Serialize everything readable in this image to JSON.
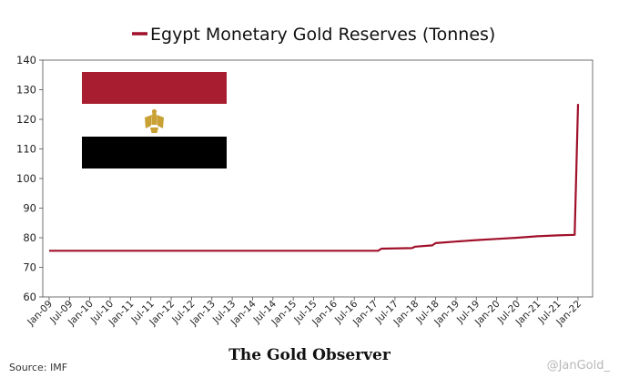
{
  "chart_data": {
    "type": "line",
    "title": "Egypt Monetary Gold Reserves (Tonnes)",
    "xlabel": "",
    "ylabel": "",
    "ylim": [
      60,
      140
    ],
    "yticks": [
      60,
      70,
      80,
      90,
      100,
      110,
      120,
      130,
      140
    ],
    "xticks": [
      "Jan-09",
      "Jul-09",
      "Jan-10",
      "Jul-10",
      "Jan-11",
      "Jul-11",
      "Jan-12",
      "Jul-12",
      "Jan-13",
      "Jul-13",
      "Jan-14",
      "Jul-14",
      "Jan-15",
      "Jul-15",
      "Jan-16",
      "Jul-16",
      "Jan-17",
      "Jul-17",
      "Jan-18",
      "Jul-18",
      "Jan-19",
      "Jul-19",
      "Jan-20",
      "Jul-20",
      "Jan-21",
      "Jul-21",
      "Jan-22"
    ],
    "grid": false,
    "legend": "top",
    "series": [
      {
        "name": "Egypt Monetary Gold Reserves (Tonnes)",
        "color": "#a0102a",
        "points": [
          [
            "2009-01",
            75.6
          ],
          [
            "2016-12",
            75.6
          ],
          [
            "2017-02",
            75.6
          ],
          [
            "2017-03",
            76.3
          ],
          [
            "2017-12",
            76.5
          ],
          [
            "2018-01",
            77.0
          ],
          [
            "2018-06",
            77.4
          ],
          [
            "2018-07",
            78.2
          ],
          [
            "2019-01",
            78.7
          ],
          [
            "2019-07",
            79.2
          ],
          [
            "2020-01",
            79.6
          ],
          [
            "2020-07",
            80.0
          ],
          [
            "2021-01",
            80.5
          ],
          [
            "2021-07",
            80.8
          ],
          [
            "2021-12",
            81.0
          ],
          [
            "2022-01",
            125.2
          ]
        ]
      }
    ]
  },
  "flag": {
    "colors": {
      "red": "#a81e30",
      "white": "#ffffff",
      "black": "#000000",
      "eagle": "#c8a033"
    },
    "eagle_icon": "eagle-of-saladin-icon"
  },
  "footer": {
    "source": "Source: IMF",
    "brand": "The Gold Observer",
    "handle": "@JanGold_"
  }
}
